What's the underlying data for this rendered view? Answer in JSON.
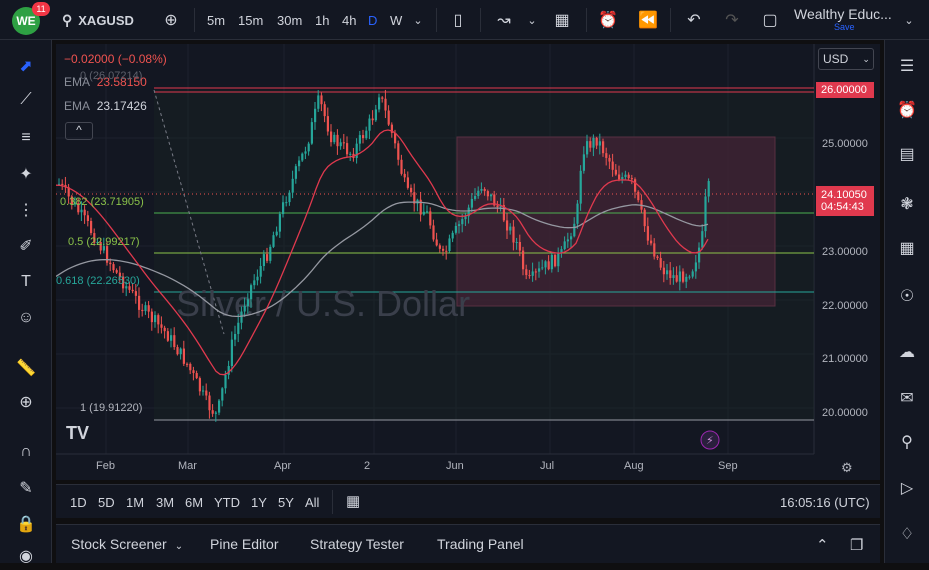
{
  "header": {
    "badge_count": "11",
    "logo_text": "WE",
    "symbol": "XAGUSD",
    "timeframes": [
      "5m",
      "15m",
      "30m",
      "1h",
      "4h",
      "D",
      "W"
    ],
    "active_timeframe": "D",
    "account_name": "Wealthy Educ...",
    "account_save": "Save"
  },
  "legend": {
    "change": "−0.02000 (−0.08%)",
    "ema1_label": "EMA",
    "ema1_value": "23.58150",
    "ema2_label": "EMA",
    "ema2_value": "23.17426",
    "collapse": "^"
  },
  "fib_labels": {
    "f0": "0 (26.07214)",
    "f382": "0.382 (23.71905)",
    "f5": "0.5 (22.99217)",
    "f618": "0.618 (22.26530)",
    "f1": "1 (19.91220)"
  },
  "price_axis": {
    "currency": "USD",
    "labels": [
      "25.00000",
      "23.00000",
      "22.00000",
      "21.00000",
      "20.00000"
    ],
    "tag_26": "26.00000",
    "tag_last": "24.10050",
    "tag_countdown": "04:54:43"
  },
  "time_axis": {
    "labels": [
      "Feb",
      "Mar",
      "Apr",
      "2",
      "Jun",
      "Jul",
      "Aug",
      "Sep"
    ]
  },
  "watermark": "Silver / U.S. Dollar",
  "ranges": [
    "1D",
    "5D",
    "1M",
    "3M",
    "6M",
    "YTD",
    "1Y",
    "5Y",
    "All"
  ],
  "clock": "16:05:16 (UTC)",
  "panel_tabs": [
    "Stock Screener",
    "Pine Editor",
    "Strategy Tester",
    "Trading Panel"
  ],
  "colors": {
    "up": "#26a69a",
    "down": "#ef5350",
    "box_fill": "#5b2340",
    "ema_fast": "#e0394e",
    "ema_slow": "#9598a1",
    "fib_0": "#e0394e",
    "fib_382": "#4caf50",
    "fib_618": "#26a69a"
  }
}
